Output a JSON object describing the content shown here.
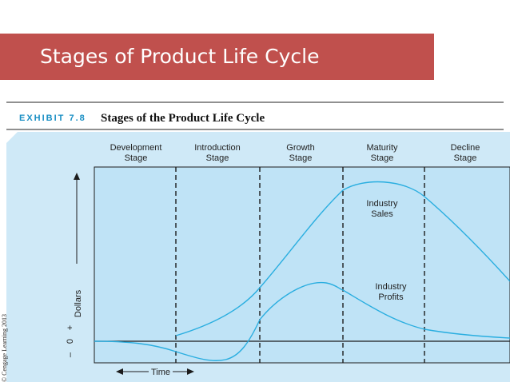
{
  "slide": {
    "title": "Stages of Product Life Cycle"
  },
  "exhibit": {
    "label": "EXHIBIT 7.8",
    "title": "Stages of the Product Life Cycle"
  },
  "stages": [
    {
      "line1": "Development",
      "line2": "Stage"
    },
    {
      "line1": "Introduction",
      "line2": "Stage"
    },
    {
      "line1": "Growth",
      "line2": "Stage"
    },
    {
      "line1": "Maturity",
      "line2": "Stage"
    },
    {
      "line1": "Decline",
      "line2": "Stage"
    }
  ],
  "curves": {
    "sales": {
      "line1": "Industry",
      "line2": "Sales"
    },
    "profits": {
      "line1": "Industry",
      "line2": "Profits"
    }
  },
  "axes": {
    "y_label": "Dollars",
    "plus": "+",
    "zero": "0",
    "minus": "–",
    "x_label": "Time"
  },
  "credit": "© Cengage Learning 2013",
  "colors": {
    "banner": "#c0504d",
    "panel": "#cfe9f7",
    "plot": "#bfe3f6",
    "curve": "#2aaee0",
    "exhibit_accent": "#1a8fc4"
  }
}
